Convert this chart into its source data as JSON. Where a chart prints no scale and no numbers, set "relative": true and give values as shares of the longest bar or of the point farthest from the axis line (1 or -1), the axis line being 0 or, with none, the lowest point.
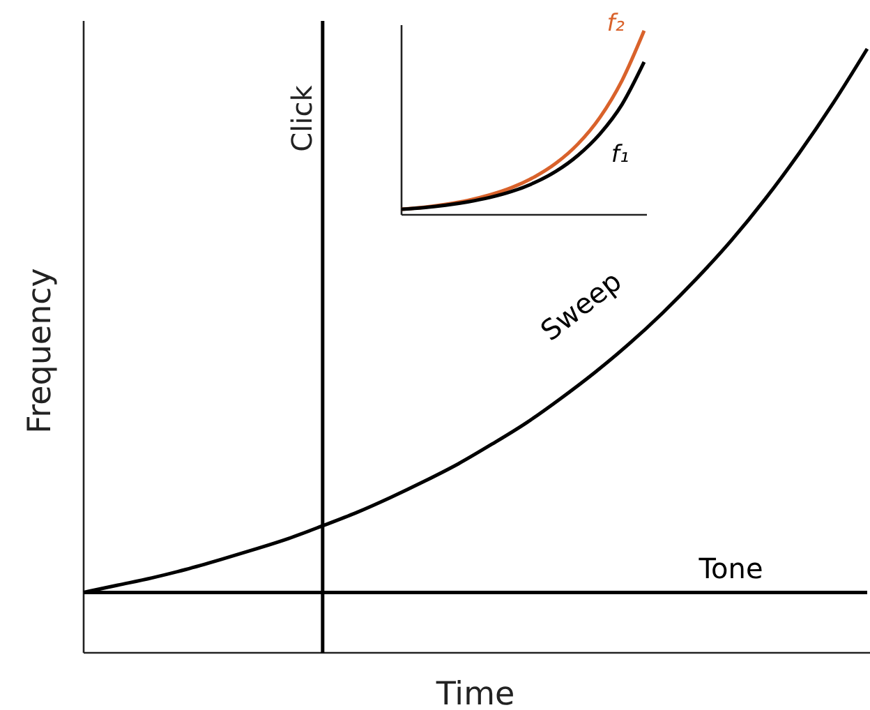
{
  "chart_data": [
    {
      "type": "line",
      "xlabel": "Time",
      "ylabel": "Frequency",
      "relative": true,
      "categories": [
        null,
        null,
        null,
        null,
        null,
        null,
        null,
        null,
        null,
        null,
        null,
        null,
        null,
        null,
        null,
        null,
        null,
        null,
        null,
        null,
        null,
        null,
        null,
        null
      ],
      "series": [
        {
          "name": "Sweep",
          "color": "#000000",
          "values": [
            0.1,
            0.112,
            0.124,
            0.138,
            0.154,
            0.171,
            0.189,
            0.21,
            0.232,
            0.257,
            0.284,
            0.313,
            0.346,
            0.381,
            0.421,
            0.464,
            0.511,
            0.563,
            0.62,
            0.682,
            0.751,
            0.827,
            0.91,
            1.0
          ]
        },
        {
          "name": "Tone",
          "color": "#000000",
          "values": [
            0.1,
            0.1,
            0.1,
            0.1,
            0.1,
            0.1,
            0.1,
            0.1,
            0.1,
            0.1,
            0.1,
            0.1,
            0.1,
            0.1,
            0.1,
            0.1,
            0.1,
            0.1,
            0.1,
            0.1,
            0.1,
            0.1,
            0.1,
            0.1
          ]
        }
      ],
      "annotations": [
        "Click"
      ]
    },
    {
      "type": "line",
      "relative": true,
      "categories": [
        null,
        null,
        null,
        null,
        null,
        null,
        null,
        null,
        null,
        null,
        null,
        null
      ],
      "series": [
        {
          "name": "f₂",
          "color": "#d9622b",
          "values": [
            0.03,
            0.041,
            0.057,
            0.078,
            0.108,
            0.148,
            0.204,
            0.28,
            0.385,
            0.53,
            0.73,
            1.0
          ]
        },
        {
          "name": "f₁",
          "color": "#000000",
          "values": [
            0.03,
            0.039,
            0.052,
            0.07,
            0.094,
            0.127,
            0.173,
            0.236,
            0.323,
            0.44,
            0.6,
            0.83
          ]
        }
      ]
    }
  ]
}
